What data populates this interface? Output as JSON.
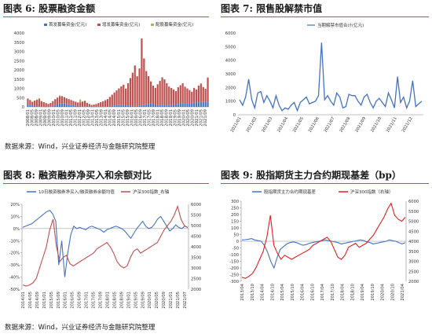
{
  "figures": [
    {
      "title": "图表 6:  股票融资金额"
    },
    {
      "title": "图表 7:  限售股解禁市值"
    },
    {
      "title": "图表 8:  融资融券净买入和余额对比"
    },
    {
      "title": "图表 9:  股指期货主力合约期现基差（bp）"
    }
  ],
  "sources": [
    "数据来源：Wind，兴业证券经济与金融研究院整理",
    "数据来源：Wind，兴业证券经济与金融研究院整理"
  ],
  "colors": {
    "blue": "#4472c4",
    "red": "#c0504d",
    "green": "#9bbb59",
    "rule": "#c0504d"
  },
  "chart_data": [
    {
      "id": "fig6",
      "type": "bar",
      "stacked": true,
      "ylim": [
        0,
        4000
      ],
      "yticks": [
        0,
        500,
        1000,
        1500,
        2000,
        2500,
        3000,
        3500,
        4000
      ],
      "legend": "top",
      "series": [
        {
          "name": "首发募集资金(亿元)",
          "color": "#4472c4",
          "values": [
            150,
            120,
            80,
            60,
            40,
            20,
            10,
            5,
            5,
            10,
            30,
            60,
            120,
            150,
            180,
            200,
            180,
            160,
            140,
            120,
            100,
            80,
            60,
            50,
            40,
            30,
            20,
            10,
            5,
            5,
            5,
            5,
            5,
            5,
            10,
            20,
            40,
            60,
            80,
            90,
            100,
            110,
            100,
            90,
            80,
            60,
            50,
            40,
            60,
            80,
            100,
            120,
            140,
            160,
            180,
            150,
            130,
            120,
            110,
            100,
            90,
            80,
            100,
            120,
            140,
            150,
            160,
            170,
            180,
            190,
            200,
            210,
            220,
            230,
            240,
            250,
            260,
            270,
            280,
            290
          ]
        },
        {
          "name": "增发募集资金(亿元)",
          "color": "#c0504d",
          "values": [
            300,
            250,
            200,
            280,
            350,
            400,
            300,
            250,
            200,
            150,
            180,
            250,
            300,
            350,
            400,
            380,
            350,
            300,
            280,
            250,
            220,
            200,
            180,
            200,
            250,
            300,
            200,
            150,
            100,
            120,
            150,
            200,
            250,
            300,
            350,
            400,
            500,
            600,
            700,
            800,
            900,
            1000,
            1100,
            900,
            1200,
            1500,
            1800,
            2200,
            1600,
            2000,
            3600,
            2500,
            1800,
            1500,
            1200,
            1000,
            900,
            1100,
            1300,
            1500,
            1400,
            1200,
            1000,
            900,
            800,
            700,
            900,
            1000,
            1100,
            900,
            800,
            700,
            600,
            800,
            700,
            900,
            1000,
            800,
            700,
            1300
          ]
        },
        {
          "name": "配股募集资金(亿元)",
          "color": "#9bbb59",
          "values": [
            0,
            0,
            0,
            0,
            0,
            50,
            0,
            0,
            0,
            0,
            0,
            0,
            0,
            0,
            40,
            0,
            0,
            0,
            0,
            0,
            0,
            0,
            0,
            150,
            0,
            0,
            0,
            0,
            0,
            0,
            0,
            0,
            0,
            0,
            0,
            0,
            0,
            0,
            0,
            0,
            0,
            0,
            0,
            0,
            0,
            0,
            0,
            0,
            0,
            0,
            0,
            0,
            0,
            0,
            0,
            0,
            0,
            0,
            0,
            0,
            0,
            0,
            0,
            0,
            0,
            0,
            0,
            0,
            0,
            0,
            0,
            0,
            0,
            0,
            0,
            0,
            0,
            0,
            0,
            0
          ]
        }
      ],
      "xticks": [
        "2008/01",
        "2008/05",
        "2008/09",
        "2009/01",
        "2009/05",
        "2009/09",
        "2010/01",
        "2010/05",
        "2010/09",
        "2011/01",
        "2011/05",
        "2011/09",
        "2012/01",
        "2012/05",
        "2012/09",
        "2013/01",
        "2013/05",
        "2013/09",
        "2014/01",
        "2014/05",
        "2014/09",
        "2015/01",
        "2015/05",
        "2015/09",
        "2016/01",
        "2016/05",
        "2016/09",
        "2017/01",
        "2017/05",
        "2017/09",
        "2018/01",
        "2018/05",
        "2018/09",
        "2019/01",
        "2019/05",
        "2019/09",
        "2020/01",
        "2020/05",
        "2020/09",
        "2021/01",
        "2021/05",
        "2021/09"
      ]
    },
    {
      "id": "fig7",
      "type": "line",
      "ylim": [
        0,
        6000
      ],
      "yticks": [
        0,
        1000,
        2000,
        3000,
        4000,
        5000,
        6000
      ],
      "legend": "top",
      "series": [
        {
          "name": "当期解禁市值合计(亿元)",
          "color": "#4472c4",
          "values": [
            1100,
            700,
            1300,
            2600,
            1100,
            500,
            1600,
            1700,
            900,
            1400,
            1000,
            500,
            1400,
            700,
            300,
            500,
            400,
            700,
            900,
            300,
            900,
            1100,
            1300,
            800,
            900,
            1000,
            1400,
            5300,
            1100,
            1400,
            1000,
            700,
            1600,
            1300,
            500,
            600,
            1500,
            1400,
            1400,
            1000,
            700,
            1300,
            1500,
            900,
            500,
            1000,
            1200,
            900,
            600,
            1600,
            1100,
            500,
            2800,
            900,
            1300,
            500,
            1000,
            2500,
            600,
            800,
            1000
          ]
        }
      ],
      "xticks": [
        "2021/01",
        "2021/02",
        "2021/03",
        "2021/04",
        "2021/05",
        "2021/06",
        "2021/07",
        "2021/08",
        "2021/09",
        "2021/10",
        "2021/11",
        "2021/12"
      ]
    },
    {
      "id": "fig8",
      "type": "line",
      "dual_axis": true,
      "ylim_left": [
        -50,
        20
      ],
      "yticks_left": [
        "20%",
        "10%",
        "0%",
        "-10%",
        "-20%",
        "-30%",
        "-40%",
        "-50%"
      ],
      "ylim_right": [
        2000,
        6000
      ],
      "yticks_right": [
        2000,
        2500,
        3000,
        3500,
        4000,
        4500,
        5000,
        5500,
        6000
      ],
      "legend": "top",
      "series": [
        {
          "name": "10日融资融券净买入/融资融券余额均值",
          "color": "#4472c4",
          "axis": "left",
          "values": [
            1,
            2,
            3,
            4,
            6,
            8,
            10,
            12,
            14,
            15,
            12,
            6,
            -30,
            -10,
            -40,
            -20,
            -5,
            2,
            0,
            1,
            0,
            -1,
            1,
            2,
            1,
            0,
            -1,
            -3,
            -1,
            0,
            1,
            2,
            1,
            0,
            -2,
            -5,
            -8,
            -4,
            0,
            3,
            6,
            2,
            0,
            1,
            4,
            8,
            10,
            6,
            2,
            -2,
            0,
            3,
            1,
            0,
            2,
            1
          ]
        },
        {
          "name": "沪深300指数_右轴",
          "color": "#c0504d",
          "axis": "right",
          "values": [
            2200,
            2150,
            2200,
            2300,
            2500,
            3000,
            3500,
            4000,
            4800,
            5300,
            4000,
            3300,
            3500,
            3600,
            3200,
            3100,
            3200,
            3300,
            3400,
            3500,
            3600,
            3700,
            3900,
            4000,
            4100,
            4200,
            4000,
            3700,
            3300,
            3100,
            3000,
            3100,
            3500,
            3800,
            3900,
            3700,
            3800,
            3900,
            4000,
            4100,
            4200,
            4500,
            4800,
            5000,
            5200,
            5500,
            5900,
            5300,
            5000,
            4900
          ]
        }
      ],
      "xticks": [
        "2014/01",
        "2014/05",
        "2014/09",
        "2015/01",
        "2015/05",
        "2015/09",
        "2016/01",
        "2016/05",
        "2016/09",
        "2017/01",
        "2017/05",
        "2017/09",
        "2018/01",
        "2018/05",
        "2018/09",
        "2019/01",
        "2019/05",
        "2019/09",
        "2020/01",
        "2020/05",
        "2020/09",
        "2021/01",
        "2021/05",
        "2021/07"
      ]
    },
    {
      "id": "fig9",
      "type": "line",
      "dual_axis": true,
      "ylim_left": [
        -300,
        300
      ],
      "yticks_left": [
        300,
        250,
        200,
        150,
        100,
        50,
        0,
        -50,
        -100,
        -150,
        -200,
        -250,
        -300
      ],
      "ylim_right": [
        2000,
        6000
      ],
      "yticks_right": [
        2000,
        2500,
        3000,
        3500,
        4000,
        4500,
        5000,
        5500,
        6000
      ],
      "legend": "top",
      "series": [
        {
          "name": "股指期货主力合约期现基差",
          "color": "#4472c4",
          "axis": "left",
          "values": [
            10,
            12,
            15,
            20,
            10,
            5,
            0,
            -30,
            -80,
            -150,
            -200,
            -120,
            -60,
            -40,
            -20,
            -10,
            -5,
            -10,
            -20,
            -30,
            -25,
            -15,
            -10,
            -5,
            0,
            5,
            10,
            5,
            0,
            -5,
            -10,
            -20,
            -15,
            -10,
            -5,
            0,
            5,
            10,
            5,
            -5,
            -10,
            -20,
            -15,
            -10,
            -5,
            0,
            10,
            5,
            0,
            -10,
            -20,
            -10
          ]
        },
        {
          "name": "沪深300指数（右轴）",
          "color": "#e02020",
          "axis": "right",
          "values": [
            2200,
            2150,
            2250,
            2400,
            2700,
            3100,
            3500,
            4200,
            5300,
            3800,
            3400,
            3100,
            3300,
            3200,
            3100,
            3200,
            3300,
            3400,
            3500,
            3600,
            3800,
            3900,
            4000,
            4100,
            4200,
            4000,
            3600,
            3200,
            3100,
            3300,
            3700,
            3800,
            3900,
            3700,
            3800,
            3900,
            4100,
            4300,
            4600,
            4900,
            5200,
            5600,
            5900,
            5300,
            5100,
            5000,
            5200
          ]
        }
      ],
      "xticks": [
        "2013/04",
        "2013/10",
        "2014/04",
        "2014/10",
        "2015/04",
        "2015/10",
        "2016/04",
        "2016/10",
        "2017/04",
        "2017/10",
        "2018/04",
        "2018/10",
        "2019/04",
        "2019/10",
        "2020/04",
        "2020/10",
        "2021/04"
      ]
    }
  ]
}
